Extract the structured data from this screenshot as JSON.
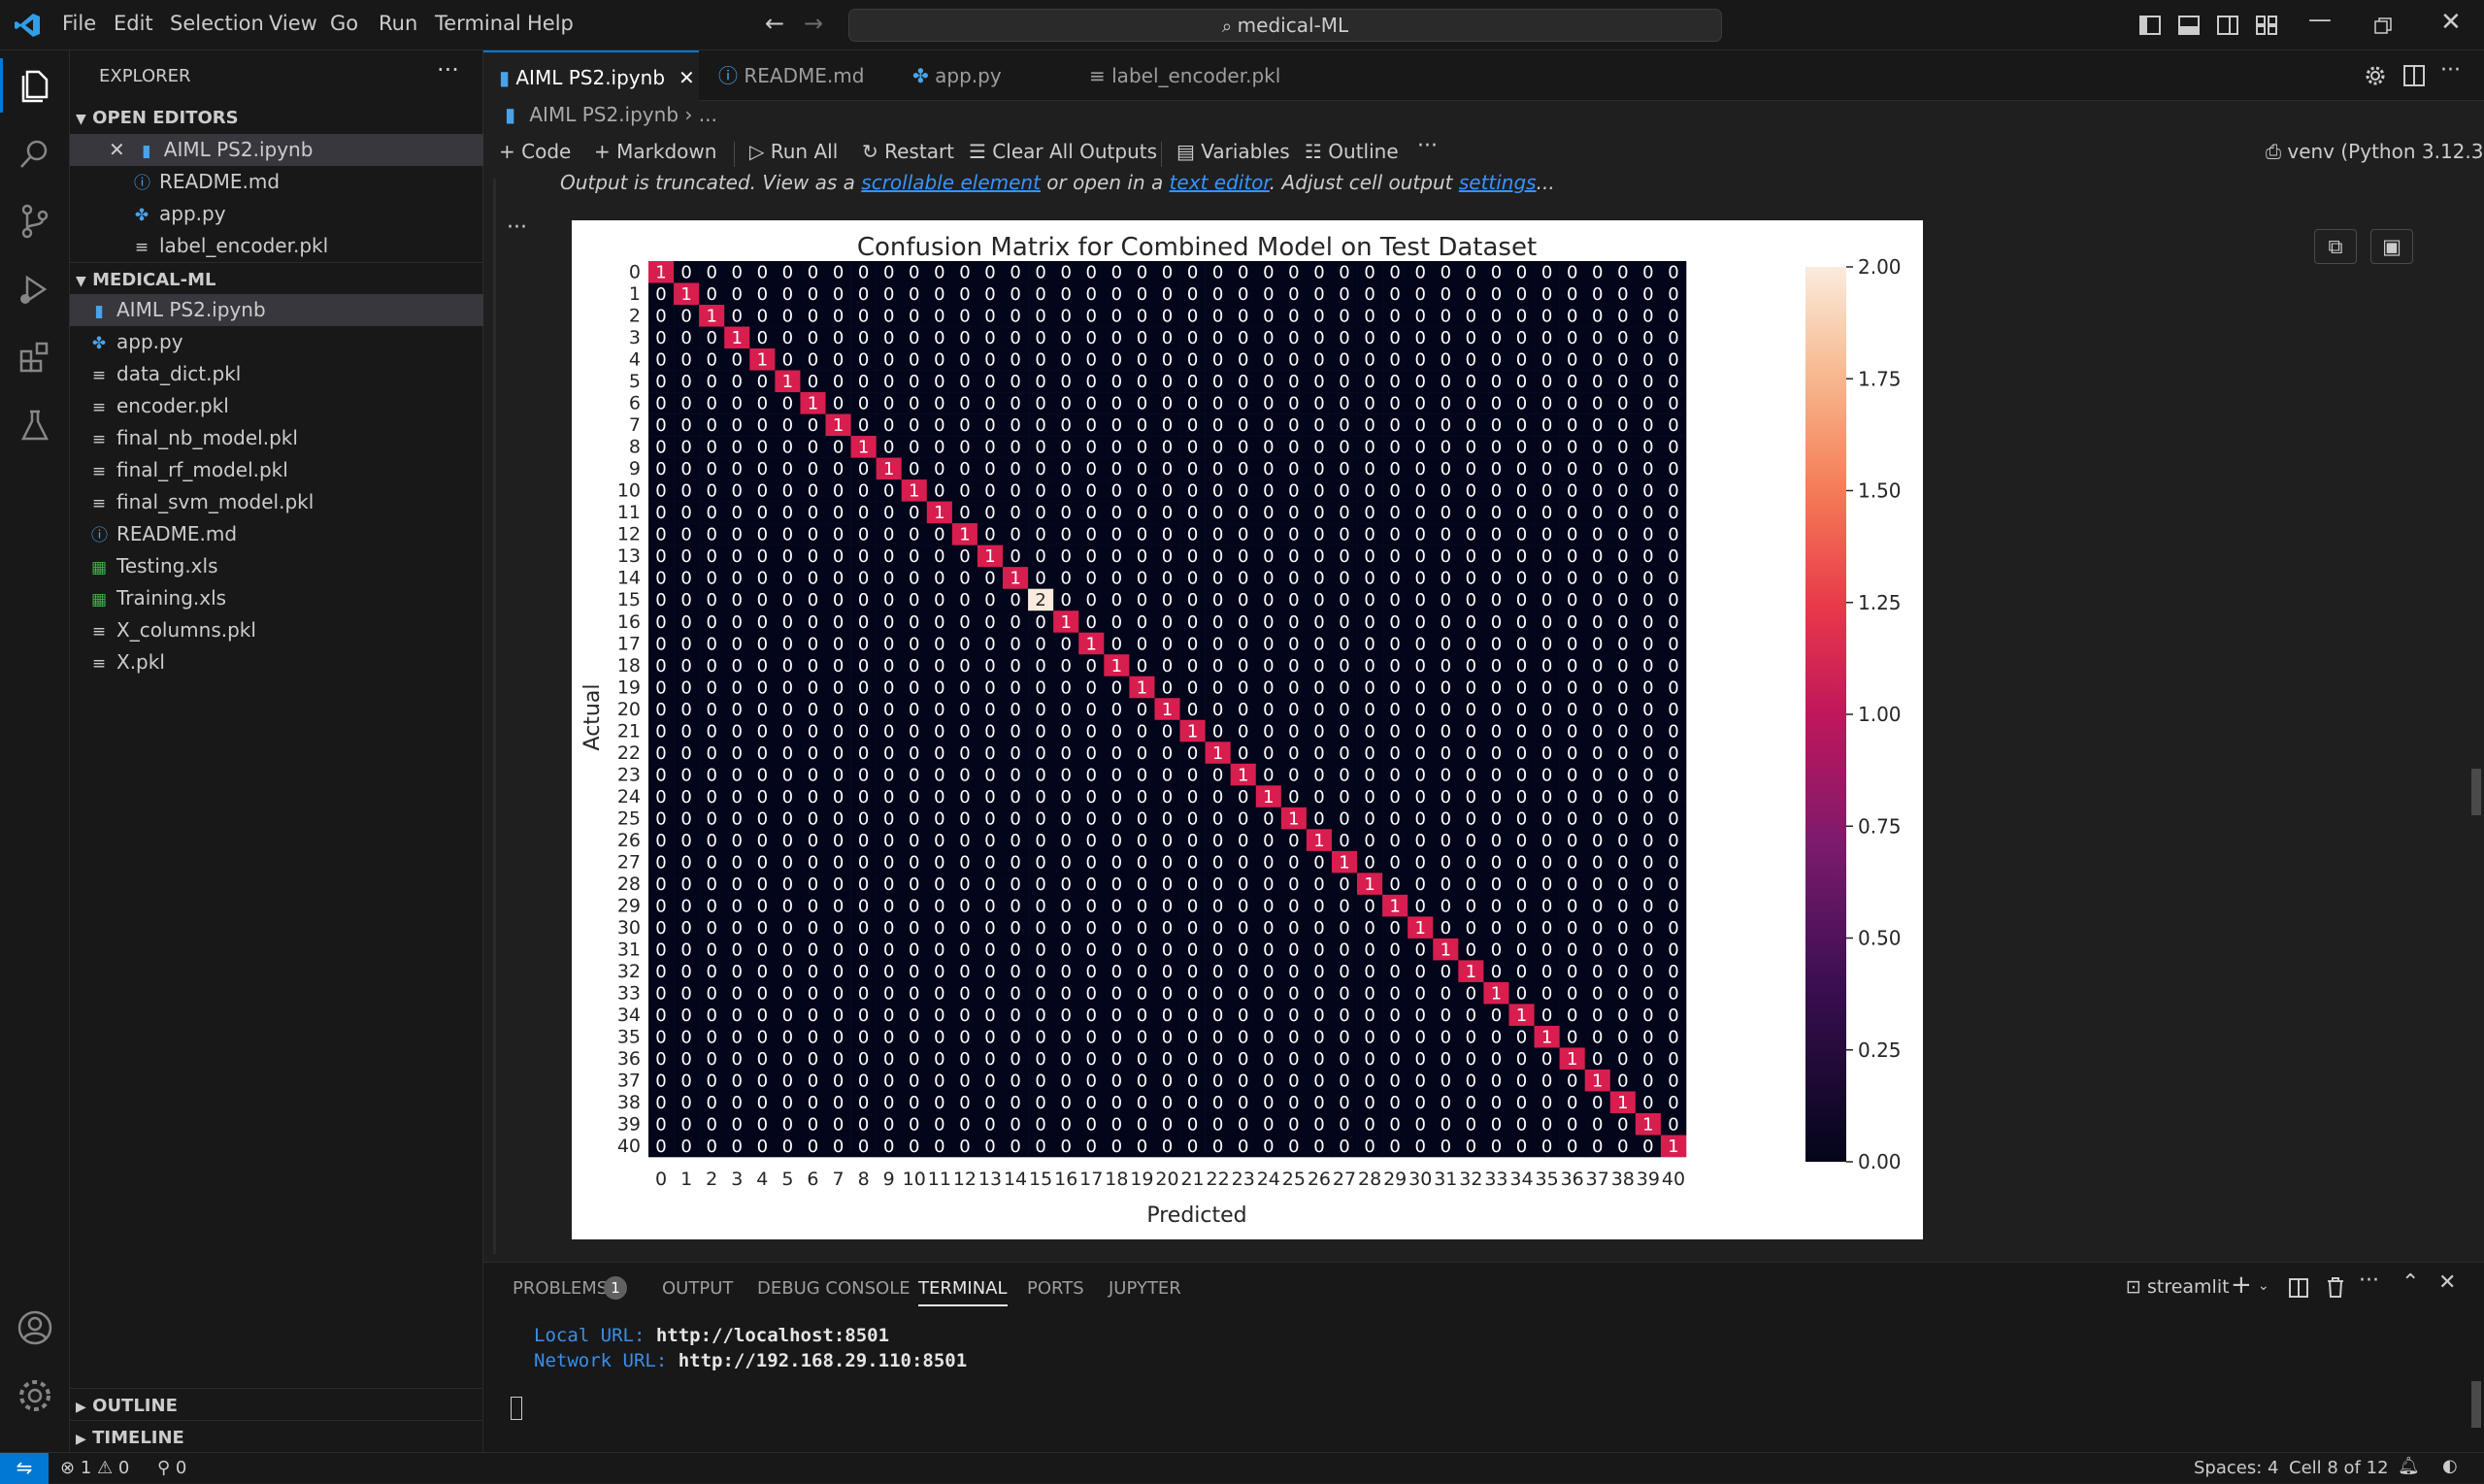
{
  "titlebar": {
    "menu": [
      "File",
      "Edit",
      "Selection",
      "View",
      "Go",
      "Run",
      "Terminal",
      "Help"
    ],
    "search": "medical-ML"
  },
  "activitybar": {
    "icons": [
      "files-icon",
      "search-icon",
      "source-control-icon",
      "run-debug-icon",
      "extensions-icon",
      "testing-icon",
      "account-icon",
      "settings-gear-icon"
    ]
  },
  "sidebar": {
    "title": "EXPLORER",
    "open_editors_label": "OPEN EDITORS",
    "open_editors": [
      {
        "name": "AIML PS2.ipynb",
        "icon": "notebook"
      },
      {
        "name": "README.md",
        "icon": "info"
      },
      {
        "name": "app.py",
        "icon": "python"
      },
      {
        "name": "label_encoder.pkl",
        "icon": "file"
      }
    ],
    "folder_label": "MEDICAL-ML",
    "files": [
      {
        "name": "AIML PS2.ipynb",
        "icon": "notebook"
      },
      {
        "name": "app.py",
        "icon": "python"
      },
      {
        "name": "data_dict.pkl",
        "icon": "file"
      },
      {
        "name": "encoder.pkl",
        "icon": "file"
      },
      {
        "name": "final_nb_model.pkl",
        "icon": "file"
      },
      {
        "name": "final_rf_model.pkl",
        "icon": "file"
      },
      {
        "name": "final_svm_model.pkl",
        "icon": "file"
      },
      {
        "name": "README.md",
        "icon": "info"
      },
      {
        "name": "Testing.xls",
        "icon": "excel"
      },
      {
        "name": "Training.xls",
        "icon": "excel"
      },
      {
        "name": "X_columns.pkl",
        "icon": "file"
      },
      {
        "name": "X.pkl",
        "icon": "file"
      }
    ],
    "outline_label": "OUTLINE",
    "timeline_label": "TIMELINE"
  },
  "tabs": [
    {
      "label": "AIML PS2.ipynb",
      "active": true
    },
    {
      "label": "README.md",
      "active": false
    },
    {
      "label": "app.py",
      "active": false
    },
    {
      "label": "label_encoder.pkl",
      "active": false
    }
  ],
  "breadcrumb": {
    "file": "AIML PS2.ipynb",
    "rest": "..."
  },
  "notebook_toolbar": {
    "code": "Code",
    "markdown": "Markdown",
    "run_all": "Run All",
    "restart": "Restart",
    "clear": "Clear All Outputs",
    "variables": "Variables",
    "outline": "Outline",
    "kernel": "venv (Python 3.12.3)"
  },
  "output": {
    "truncated_1": "Output is truncated. View as a ",
    "link_1": "scrollable element",
    "truncated_2": " or open in a ",
    "link_2": "text editor",
    "truncated_3": ". Adjust cell output ",
    "link_3": "settings",
    "truncated_4": "..."
  },
  "chart_data": {
    "type": "heatmap",
    "title": "Confusion Matrix for Combined Model on Test Dataset",
    "xlabel": "Predicted",
    "ylabel": "Actual",
    "size": 41,
    "x_ticks": [
      "0",
      "1",
      "2",
      "3",
      "4",
      "5",
      "6",
      "7",
      "8",
      "9",
      "10",
      "11",
      "12",
      "13",
      "14",
      "15",
      "16",
      "17",
      "18",
      "19",
      "20",
      "21",
      "22",
      "23",
      "24",
      "25",
      "26",
      "27",
      "28",
      "29",
      "30",
      "31",
      "32",
      "33",
      "34",
      "35",
      "36",
      "37",
      "38",
      "39",
      "40"
    ],
    "y_ticks": [
      "0",
      "1",
      "2",
      "3",
      "4",
      "5",
      "6",
      "7",
      "8",
      "9",
      "10",
      "11",
      "12",
      "13",
      "14",
      "15",
      "16",
      "17",
      "18",
      "19",
      "20",
      "21",
      "22",
      "23",
      "24",
      "25",
      "26",
      "27",
      "28",
      "29",
      "30",
      "31",
      "32",
      "33",
      "34",
      "35",
      "36",
      "37",
      "38",
      "39",
      "40"
    ],
    "diagonal": [
      1,
      1,
      1,
      1,
      1,
      1,
      1,
      1,
      1,
      1,
      1,
      1,
      1,
      1,
      1,
      2,
      1,
      1,
      1,
      1,
      1,
      1,
      1,
      1,
      1,
      1,
      1,
      1,
      1,
      1,
      1,
      1,
      1,
      1,
      1,
      1,
      1,
      1,
      1,
      1,
      1
    ],
    "off_diagonal_value": 0,
    "colorbar": {
      "min": 0,
      "max": 2,
      "ticks": [
        "0.00",
        "0.25",
        "0.50",
        "0.75",
        "1.00",
        "1.25",
        "1.50",
        "1.75",
        "2.00"
      ]
    },
    "colors": {
      "zero": "#03051a",
      "one": "#d81e4f",
      "two": "#faebdd"
    }
  },
  "panel": {
    "tabs": [
      "PROBLEMS",
      "OUTPUT",
      "DEBUG CONSOLE",
      "TERMINAL",
      "PORTS",
      "JUPYTER"
    ],
    "problems_count": "1",
    "active_tab": "TERMINAL",
    "terminal_name": "streamlit",
    "lines": [
      {
        "label": "Local URL:",
        "value": "http://localhost:8501"
      },
      {
        "label": "Network URL:",
        "value": "http://192.168.29.110:8501"
      }
    ]
  },
  "statusbar": {
    "errors": "1",
    "warnings": "0",
    "ports": "0",
    "spaces": "Spaces: 4",
    "cell": "Cell 8 of 12"
  }
}
